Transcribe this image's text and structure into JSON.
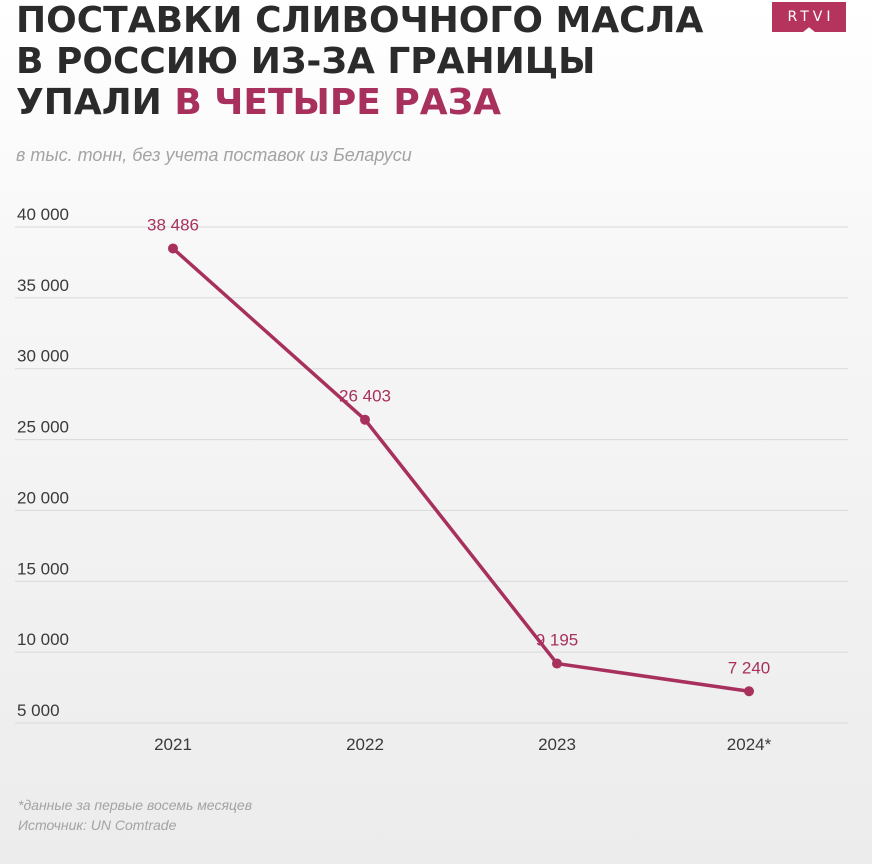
{
  "title": {
    "line1": "ПОСТАВКИ СЛИВОЧНОГО МАСЛА",
    "line2": "В РОССИЮ ИЗ-ЗА ГРАНИЦЫ",
    "line3_prefix": "УПАЛИ ",
    "line3_highlight": "В ЧЕТЫРЕ РАЗА"
  },
  "subtitle": "в тыс. тонн, без учета поставок из Беларуси",
  "logo": "RTVI",
  "footnote": {
    "note": "*данные за первые восемь месяцев",
    "source": "Источник: UN Comtrade"
  },
  "colors": {
    "accent": "#a8305d",
    "logo": "#b4345d",
    "title": "#2b2b2b",
    "muted": "#a3a3a3"
  },
  "chart_data": {
    "type": "line",
    "categories": [
      "2021",
      "2022",
      "2023",
      "2024*"
    ],
    "series": [
      {
        "values": [
          38486,
          26403,
          9195,
          7240
        ]
      }
    ],
    "data_labels": [
      "38 486",
      "26 403",
      "9 195",
      "7 240"
    ],
    "y_ticks": [
      {
        "value": 5000,
        "label": "5 000"
      },
      {
        "value": 10000,
        "label": "10 000"
      },
      {
        "value": 15000,
        "label": "15 000"
      },
      {
        "value": 20000,
        "label": "20 000"
      },
      {
        "value": 25000,
        "label": "25 000"
      },
      {
        "value": 30000,
        "label": "30 000"
      },
      {
        "value": 35000,
        "label": "35 000"
      },
      {
        "value": 40000,
        "label": "40 000"
      }
    ],
    "ylim": [
      5000,
      40000
    ],
    "grid": true,
    "xlabel": "",
    "ylabel": ""
  }
}
